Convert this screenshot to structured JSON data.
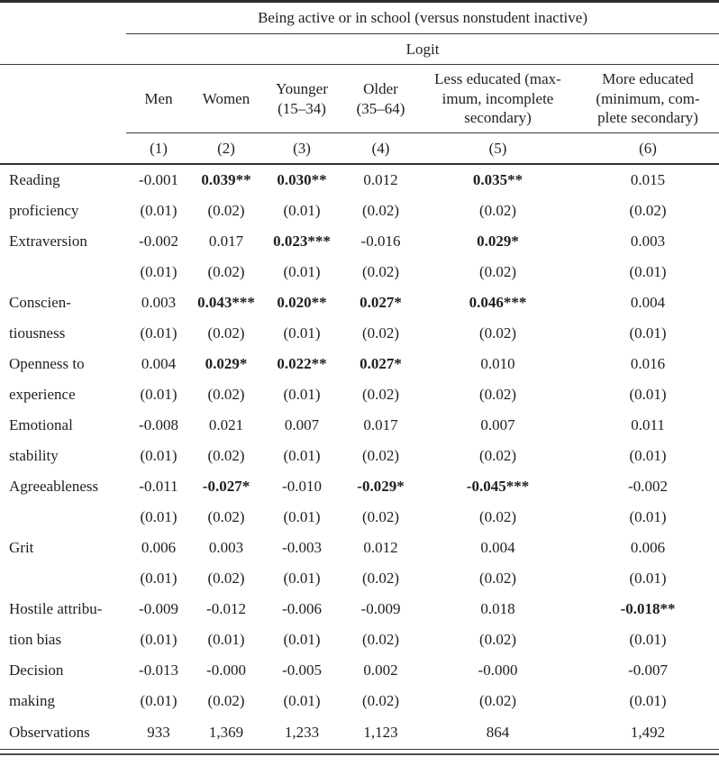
{
  "header": {
    "group_title": "Being active or in school (versus nonstudent inactive)",
    "model": "Logit",
    "columns": [
      {
        "label_lines": [
          "Men"
        ],
        "number": "(1)"
      },
      {
        "label_lines": [
          "Women"
        ],
        "number": "(2)"
      },
      {
        "label_lines": [
          "Younger",
          "(15–34)"
        ],
        "number": "(3)"
      },
      {
        "label_lines": [
          "Older",
          "(35–64)"
        ],
        "number": "(4)"
      },
      {
        "label_lines": [
          "Less educated (max-",
          "imum, incomplete",
          "secondary)"
        ],
        "number": "(5)"
      },
      {
        "label_lines": [
          "More educated",
          "(minimum, com-",
          "plete secondary)"
        ],
        "number": "(6)"
      }
    ]
  },
  "rows": [
    {
      "label_lines": [
        "Reading",
        "proficiency"
      ],
      "coefs": [
        "-0.001",
        "0.039**",
        "0.030**",
        "0.012",
        "0.035**",
        "0.015"
      ],
      "ses": [
        "(0.01)",
        "(0.02)",
        "(0.01)",
        "(0.02)",
        "(0.02)",
        "(0.02)"
      ]
    },
    {
      "label_lines": [
        "Extraversion"
      ],
      "coefs": [
        "-0.002",
        "0.017",
        "0.023***",
        "-0.016",
        "0.029*",
        "0.003"
      ],
      "ses": [
        "(0.01)",
        "(0.02)",
        "(0.01)",
        "(0.02)",
        "(0.02)",
        "(0.01)"
      ]
    },
    {
      "label_lines": [
        "Conscien-",
        "tiousness"
      ],
      "coefs": [
        "0.003",
        "0.043***",
        "0.020**",
        "0.027*",
        "0.046***",
        "0.004"
      ],
      "ses": [
        "(0.01)",
        "(0.02)",
        "(0.01)",
        "(0.02)",
        "(0.02)",
        "(0.01)"
      ]
    },
    {
      "label_lines": [
        "Openness to",
        "experience"
      ],
      "coefs": [
        "0.004",
        "0.029*",
        "0.022**",
        "0.027*",
        "0.010",
        "0.016"
      ],
      "ses": [
        "(0.01)",
        "(0.02)",
        "(0.01)",
        "(0.02)",
        "(0.02)",
        "(0.01)"
      ]
    },
    {
      "label_lines": [
        "Emotional",
        "stability"
      ],
      "coefs": [
        "-0.008",
        "0.021",
        "0.007",
        "0.017",
        "0.007",
        "0.011"
      ],
      "ses": [
        "(0.01)",
        "(0.02)",
        "(0.01)",
        "(0.02)",
        "(0.02)",
        "(0.01)"
      ]
    },
    {
      "label_lines": [
        "Agreeableness"
      ],
      "coefs": [
        "-0.011",
        "-0.027*",
        "-0.010",
        "-0.029*",
        "-0.045***",
        "-0.002"
      ],
      "ses": [
        "(0.01)",
        "(0.02)",
        "(0.01)",
        "(0.02)",
        "(0.02)",
        "(0.01)"
      ]
    },
    {
      "label_lines": [
        "Grit"
      ],
      "coefs": [
        "0.006",
        "0.003",
        "-0.003",
        "0.012",
        "0.004",
        "0.006"
      ],
      "ses": [
        "(0.01)",
        "(0.02)",
        "(0.01)",
        "(0.02)",
        "(0.02)",
        "(0.01)"
      ]
    },
    {
      "label_lines": [
        "Hostile attribu-",
        "tion bias"
      ],
      "coefs": [
        "-0.009",
        "-0.012",
        "-0.006",
        "-0.009",
        "0.018",
        "-0.018**"
      ],
      "ses": [
        "(0.01)",
        "(0.01)",
        "(0.01)",
        "(0.02)",
        "(0.02)",
        "(0.01)"
      ]
    },
    {
      "label_lines": [
        "Decision",
        "making"
      ],
      "coefs": [
        "-0.013",
        "-0.000",
        "-0.005",
        "0.002",
        "-0.000",
        "-0.007"
      ],
      "ses": [
        "(0.01)",
        "(0.02)",
        "(0.01)",
        "(0.02)",
        "(0.02)",
        "(0.01)"
      ]
    }
  ],
  "footer": {
    "label": "Observations",
    "values": [
      "933",
      "1,369",
      "1,233",
      "1,123",
      "864",
      "1,492"
    ]
  }
}
